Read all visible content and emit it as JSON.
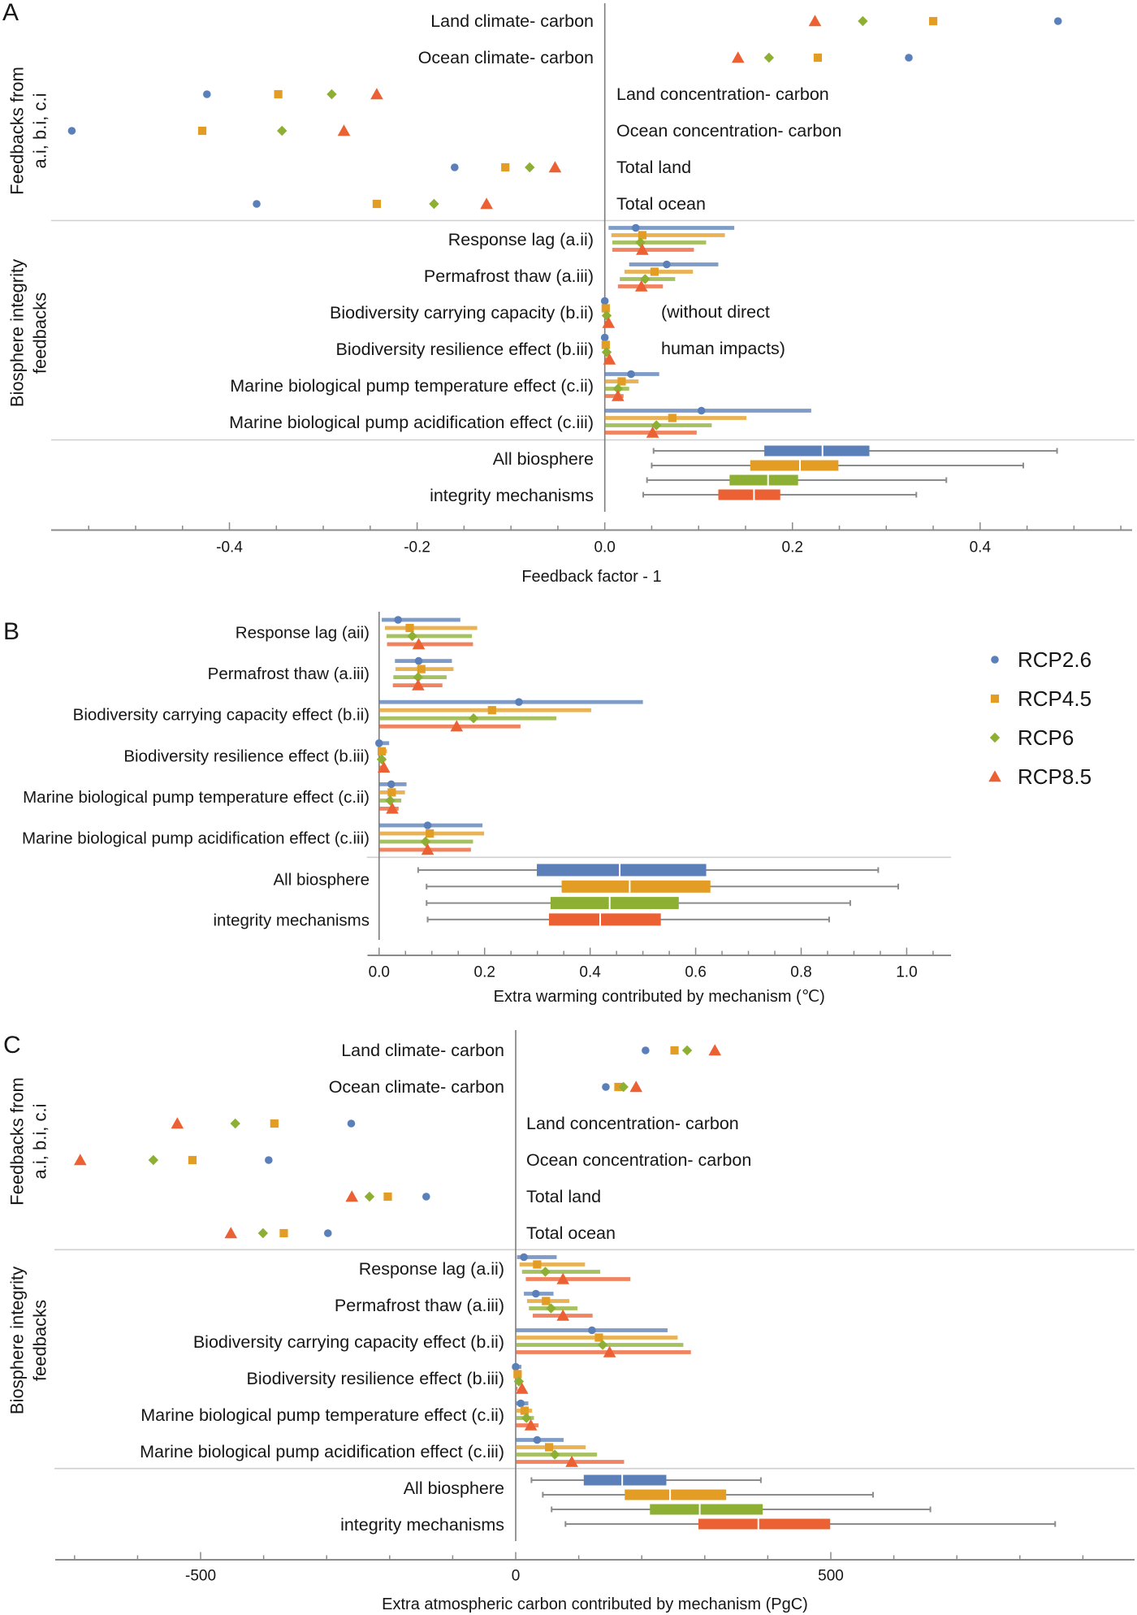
{
  "series": [
    {
      "name": "RCP2.6",
      "marker": "circle",
      "color": "#5b80b9"
    },
    {
      "name": "RCP4.5",
      "marker": "square",
      "color": "#e39d25"
    },
    {
      "name": "RCP6",
      "marker": "diamond",
      "color": "#8db034"
    },
    {
      "name": "RCP8.5",
      "marker": "triangle",
      "color": "#ec6134"
    }
  ],
  "chart_data": [
    {
      "panel": "A",
      "type": "scatter",
      "title": "",
      "xlabel": "Feedback factor - 1",
      "ylabel": "",
      "xlim": [
        -0.59,
        0.562
      ],
      "xticks": [
        -0.4,
        -0.2,
        0,
        0.2,
        0.4
      ],
      "xtick_labels": [
        "-0.4",
        "-0.2",
        "0.0",
        "0.2",
        "0.4"
      ],
      "minor_xticks": {
        "start": -0.55,
        "stop": 0.55,
        "step": 0.05
      },
      "grid": false,
      "legend": "none",
      "group_labels": [
        [
          "Feedbacks from",
          "a.i, b.i, c.i"
        ],
        [
          "Biosphere integrity",
          "feedbacks"
        ]
      ],
      "feedbacks": [
        {
          "label": "Land climate- carbon",
          "values": [
            0.483,
            0.35,
            0.275,
            0.224
          ]
        },
        {
          "label": "Ocean climate- carbon",
          "values": [
            0.324,
            0.227,
            0.175,
            0.142
          ]
        },
        {
          "label": "Land concentration- carbon",
          "values": [
            -0.424,
            -0.348,
            -0.291,
            -0.243
          ]
        },
        {
          "label": "Ocean concentration- carbon",
          "values": [
            -0.568,
            -0.429,
            -0.344,
            -0.278
          ]
        },
        {
          "label": "Total land",
          "values": [
            -0.16,
            -0.106,
            -0.08,
            -0.053
          ]
        },
        {
          "label": "Total ocean",
          "values": [
            -0.371,
            -0.243,
            -0.182,
            -0.126
          ]
        }
      ],
      "mechanisms": [
        {
          "label": "Response lag (a.ii)",
          "series": [
            {
              "value": 0.033,
              "low": 0.004,
              "high": 0.138
            },
            {
              "value": 0.04,
              "low": 0.007,
              "high": 0.128
            },
            {
              "value": 0.038,
              "low": 0.008,
              "high": 0.108
            },
            {
              "value": 0.04,
              "low": 0.008,
              "high": 0.095
            }
          ]
        },
        {
          "label": "Permafrost thaw (a.iii)",
          "series": [
            {
              "value": 0.066,
              "low": 0.026,
              "high": 0.121
            },
            {
              "value": 0.053,
              "low": 0.021,
              "high": 0.094
            },
            {
              "value": 0.043,
              "low": 0.016,
              "high": 0.075
            },
            {
              "value": 0.039,
              "low": 0.014,
              "high": 0.062
            }
          ]
        },
        {
          "label": "Biodiversity carrying capacity (b.ii)",
          "series": [
            {
              "value": 0.0,
              "low": 0.0,
              "high": 0.0
            },
            {
              "value": 0.001,
              "low": 0.0,
              "high": 0.001
            },
            {
              "value": 0.002,
              "low": 0.0,
              "high": 0.002
            },
            {
              "value": 0.004,
              "low": 0.0,
              "high": 0.004
            }
          ]
        },
        {
          "label": "Biodiversity resilience effect (b.iii)",
          "series": [
            {
              "value": 0.0,
              "low": 0.0,
              "high": 0.0
            },
            {
              "value": 0.001,
              "low": 0.0,
              "high": 0.001
            },
            {
              "value": 0.002,
              "low": 0.0,
              "high": 0.002
            },
            {
              "value": 0.005,
              "low": 0.0,
              "high": 0.005
            }
          ]
        },
        {
          "label": "Marine biological pump temperature effect (c.ii)",
          "series": [
            {
              "value": 0.028,
              "low": 0.0,
              "high": 0.058
            },
            {
              "value": 0.018,
              "low": 0.0,
              "high": 0.036
            },
            {
              "value": 0.014,
              "low": 0.0,
              "high": 0.026
            },
            {
              "value": 0.014,
              "low": 0.0,
              "high": 0.02
            }
          ]
        },
        {
          "label": "Marine biological pump acidification effect (c.iii)",
          "series": [
            {
              "value": 0.103,
              "low": 0.0,
              "high": 0.22
            },
            {
              "value": 0.072,
              "low": 0.0,
              "high": 0.151
            },
            {
              "value": 0.055,
              "low": 0.0,
              "high": 0.114
            },
            {
              "value": 0.051,
              "low": 0.0,
              "high": 0.098
            }
          ]
        }
      ],
      "annotation": [
        "(without direct",
        "human impacts)"
      ],
      "summary": {
        "label": [
          "All biosphere",
          "integrity mechanisms"
        ],
        "boxes": [
          {
            "whisker_low": 0.052,
            "q1": 0.17,
            "median": 0.232,
            "q3": 0.282,
            "whisker_high": 0.482
          },
          {
            "whisker_low": 0.05,
            "q1": 0.155,
            "median": 0.208,
            "q3": 0.249,
            "whisker_high": 0.446
          },
          {
            "whisker_low": 0.045,
            "q1": 0.133,
            "median": 0.174,
            "q3": 0.206,
            "whisker_high": 0.364
          },
          {
            "whisker_low": 0.041,
            "q1": 0.121,
            "median": 0.159,
            "q3": 0.187,
            "whisker_high": 0.332
          }
        ]
      }
    },
    {
      "panel": "B",
      "type": "scatter",
      "title": "",
      "xlabel": "Extra warming contributed by mechanism (℃)",
      "ylabel": "",
      "xlim": [
        -0.022,
        1.084
      ],
      "xticks": [
        0,
        0.2,
        0.4,
        0.6,
        0.8,
        1.0
      ],
      "xtick_labels": [
        "0.0",
        "0.2",
        "0.4",
        "0.6",
        "0.8",
        "1.0"
      ],
      "minor_xticks": {
        "start": 0,
        "stop": 1.05,
        "step": 0.05
      },
      "grid": false,
      "legend": "right",
      "mechanisms": [
        {
          "label": "Response lag (aii)",
          "series": [
            {
              "value": 0.036,
              "low": 0.005,
              "high": 0.154
            },
            {
              "value": 0.058,
              "low": 0.011,
              "high": 0.186
            },
            {
              "value": 0.063,
              "low": 0.014,
              "high": 0.176
            },
            {
              "value": 0.075,
              "low": 0.015,
              "high": 0.178
            }
          ]
        },
        {
          "label": "Permafrost thaw (a.iii)",
          "series": [
            {
              "value": 0.075,
              "low": 0.03,
              "high": 0.138
            },
            {
              "value": 0.08,
              "low": 0.031,
              "high": 0.141
            },
            {
              "value": 0.074,
              "low": 0.027,
              "high": 0.128
            },
            {
              "value": 0.074,
              "low": 0.026,
              "high": 0.12
            }
          ]
        },
        {
          "label": "Biodiversity carrying capacity effect (b.ii)",
          "series": [
            {
              "value": 0.265,
              "low": 0.0,
              "high": 0.5
            },
            {
              "value": 0.214,
              "low": 0.0,
              "high": 0.402
            },
            {
              "value": 0.179,
              "low": 0.0,
              "high": 0.336
            },
            {
              "value": 0.147,
              "low": 0.0,
              "high": 0.268
            }
          ]
        },
        {
          "label": "Biodiversity resilience effect (b.iii)",
          "series": [
            {
              "value": 0.0,
              "low": 0.0,
              "high": 0.019
            },
            {
              "value": 0.005,
              "low": 0.0,
              "high": 0.015
            },
            {
              "value": 0.005,
              "low": 0.0,
              "high": 0.012
            },
            {
              "value": 0.009,
              "low": 0.0,
              "high": 0.009
            }
          ]
        },
        {
          "label": "Marine biological pump temperature effect (c.ii)",
          "series": [
            {
              "value": 0.023,
              "low": 0.0,
              "high": 0.052
            },
            {
              "value": 0.024,
              "low": 0.0,
              "high": 0.049
            },
            {
              "value": 0.021,
              "low": 0.0,
              "high": 0.042
            },
            {
              "value": 0.025,
              "low": 0.0,
              "high": 0.037
            }
          ]
        },
        {
          "label": "Marine biological pump acidification effect (c.iii)",
          "series": [
            {
              "value": 0.092,
              "low": 0.0,
              "high": 0.196
            },
            {
              "value": 0.096,
              "low": 0.0,
              "high": 0.199
            },
            {
              "value": 0.088,
              "low": 0.0,
              "high": 0.178
            },
            {
              "value": 0.092,
              "low": 0.0,
              "high": 0.174
            }
          ]
        }
      ],
      "summary": {
        "label": [
          "All biosphere",
          "integrity mechanisms"
        ],
        "boxes": [
          {
            "whisker_low": 0.074,
            "q1": 0.299,
            "median": 0.456,
            "q3": 0.62,
            "whisker_high": 0.946
          },
          {
            "whisker_low": 0.09,
            "q1": 0.346,
            "median": 0.475,
            "q3": 0.628,
            "whisker_high": 0.984
          },
          {
            "whisker_low": 0.09,
            "q1": 0.325,
            "median": 0.437,
            "q3": 0.568,
            "whisker_high": 0.893
          },
          {
            "whisker_low": 0.092,
            "q1": 0.322,
            "median": 0.419,
            "q3": 0.534,
            "whisker_high": 0.853
          }
        ]
      }
    },
    {
      "panel": "C",
      "type": "scatter",
      "title": "",
      "xlabel": "Extra atmospheric carbon contributed by mechanism (PgC)",
      "ylabel": "",
      "xlim": [
        -730.7,
        982
      ],
      "xticks": [
        -500,
        0,
        500
      ],
      "xtick_labels": [
        "-500",
        "0",
        "500"
      ],
      "minor_xticks": {
        "start": -700,
        "stop": 900,
        "step": 100
      },
      "grid": false,
      "legend": "none",
      "group_labels": [
        [
          "Feedbacks from",
          "a.i, b.i, c.i"
        ],
        [
          "Biosphere integrity",
          "feedbacks"
        ]
      ],
      "feedbacks": [
        {
          "label": "Land climate- carbon",
          "values": [
            206,
            252,
            272,
            316
          ]
        },
        {
          "label": "Ocean climate- carbon",
          "values": [
            143,
            163,
            171,
            191
          ]
        },
        {
          "label": "Land concentration- carbon",
          "values": [
            -261,
            -383,
            -445,
            -537
          ]
        },
        {
          "label": "Ocean concentration- carbon",
          "values": [
            -392,
            -513,
            -575,
            -691
          ]
        },
        {
          "label": "Total land",
          "values": [
            -142,
            -203,
            -232,
            -260
          ]
        },
        {
          "label": "Total ocean",
          "values": [
            -298,
            -368,
            -401,
            -452
          ]
        }
      ],
      "mechanisms": [
        {
          "label": "Response lag (a.ii)",
          "series": [
            {
              "value": 13,
              "low": 2,
              "high": 65
            },
            {
              "value": 34,
              "low": 6,
              "high": 110
            },
            {
              "value": 47,
              "low": 10,
              "high": 134
            },
            {
              "value": 75,
              "low": 16,
              "high": 182
            }
          ]
        },
        {
          "label": "Permafrost thaw (a.iii)",
          "series": [
            {
              "value": 32,
              "low": 13,
              "high": 60
            },
            {
              "value": 48,
              "low": 18,
              "high": 85
            },
            {
              "value": 56,
              "low": 21,
              "high": 98
            },
            {
              "value": 75,
              "low": 27,
              "high": 122
            }
          ]
        },
        {
          "label": "Biodiversity carrying capacity effect (b.ii)",
          "series": [
            {
              "value": 121,
              "low": 0,
              "high": 241
            },
            {
              "value": 132,
              "low": 0,
              "high": 257
            },
            {
              "value": 138,
              "low": 0,
              "high": 266
            },
            {
              "value": 149,
              "low": 0,
              "high": 278
            }
          ]
        },
        {
          "label": "Biodiversity resilience effect (b.iii)",
          "series": [
            {
              "value": 0,
              "low": 0,
              "high": 9
            },
            {
              "value": 3,
              "low": 0,
              "high": 7
            },
            {
              "value": 5,
              "low": 0,
              "high": 5
            },
            {
              "value": 10,
              "low": 0,
              "high": 3
            }
          ]
        },
        {
          "label": "Marine biological pump temperature effect (c.ii)",
          "series": [
            {
              "value": 8,
              "low": 0,
              "high": 20
            },
            {
              "value": 14,
              "low": 0,
              "high": 26
            },
            {
              "value": 17,
              "low": 0,
              "high": 29
            },
            {
              "value": 24,
              "low": 0,
              "high": 36
            }
          ]
        },
        {
          "label": "Marine biological pump acidification effect (c.iii)",
          "series": [
            {
              "value": 34,
              "low": 0,
              "high": 76
            },
            {
              "value": 53,
              "low": 0,
              "high": 111
            },
            {
              "value": 62,
              "low": 0,
              "high": 129
            },
            {
              "value": 89,
              "low": 0,
              "high": 172
            }
          ]
        }
      ],
      "summary": {
        "label": [
          "All biosphere",
          "integrity mechanisms"
        ],
        "boxes": [
          {
            "whisker_low": 25,
            "q1": 108,
            "median": 169,
            "q3": 239,
            "whisker_high": 389
          },
          {
            "whisker_low": 43,
            "q1": 173,
            "median": 245,
            "q3": 334,
            "whisker_high": 567
          },
          {
            "whisker_low": 57,
            "q1": 213,
            "median": 292,
            "q3": 392,
            "whisker_high": 658
          },
          {
            "whisker_low": 79,
            "q1": 290,
            "median": 385,
            "q3": 499,
            "whisker_high": 856
          }
        ]
      }
    }
  ]
}
